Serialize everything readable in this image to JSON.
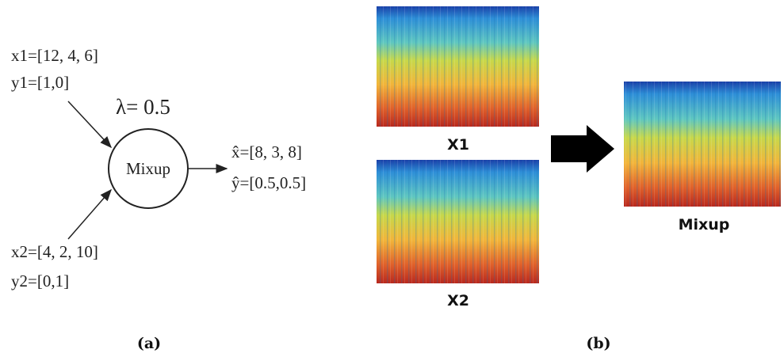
{
  "panel_a": {
    "x1": "x1=[12, 4, 6]",
    "y1": "y1=[1,0]",
    "lambda": "λ= 0.5",
    "node": "Mixup",
    "x_hat": "x̂=[8, 3, 8]",
    "y_hat": "ŷ=[0.5,0.5]",
    "x2": "x2=[4, 2, 10]",
    "y2": "y2=[0,1]",
    "caption": "(a)"
  },
  "panel_b": {
    "input1_label": "X1",
    "input2_label": "X2",
    "output_label": "Mixup",
    "caption": "(b)"
  }
}
